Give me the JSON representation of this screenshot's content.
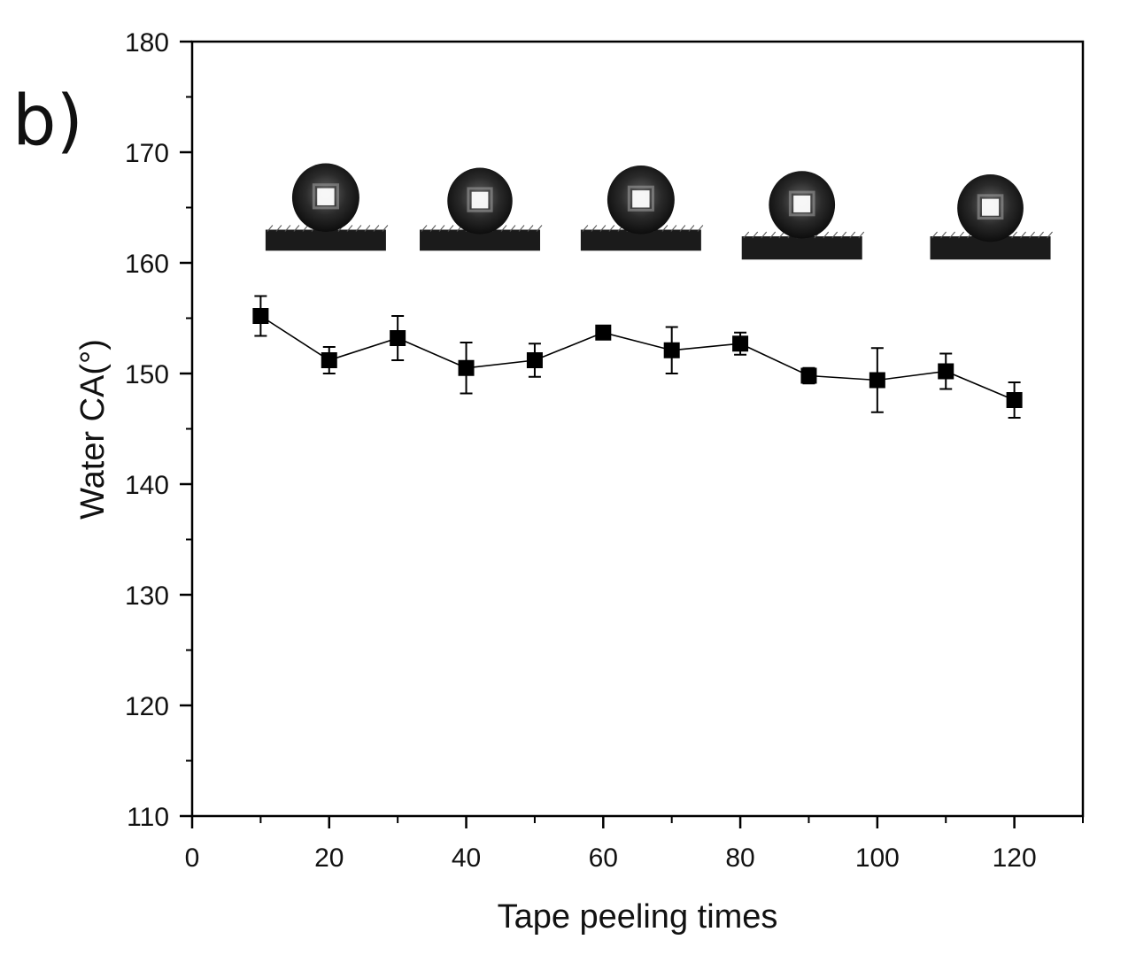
{
  "panel_label": "b)",
  "chart_data": {
    "type": "scatter",
    "title": "",
    "xlabel": "Tape peeling times",
    "ylabel": "Water CA(°)",
    "xlim": [
      0,
      130
    ],
    "ylim": [
      110,
      180
    ],
    "x_ticks": [
      0,
      20,
      40,
      60,
      80,
      100,
      120
    ],
    "y_ticks": [
      110,
      120,
      130,
      140,
      150,
      160,
      170,
      180
    ],
    "x_minor_step": 10,
    "y_minor_step": 5,
    "grid": false,
    "marker": "square",
    "line": "solid",
    "color": "#000000",
    "series": [
      {
        "x": [
          10,
          20,
          30,
          40,
          50,
          60,
          70,
          80,
          90,
          100,
          110,
          120
        ],
        "y": [
          155.2,
          151.2,
          153.2,
          150.5,
          151.2,
          153.7,
          152.1,
          152.7,
          149.8,
          149.4,
          150.2,
          147.6
        ],
        "error": [
          1.8,
          1.2,
          2.0,
          2.3,
          1.5,
          0.5,
          2.1,
          1.0,
          0.7,
          2.9,
          1.6,
          1.6
        ]
      }
    ],
    "insets": [
      {
        "name": "droplet-image",
        "x_center": 19.5,
        "drop_top": 169.0,
        "drop_bottom": 162.8,
        "base_top": 163.0,
        "base_bottom": 161.1
      },
      {
        "name": "droplet-image",
        "x_center": 42.0,
        "drop_top": 168.6,
        "drop_bottom": 162.6,
        "base_top": 163.0,
        "base_bottom": 161.1
      },
      {
        "name": "droplet-image",
        "x_center": 65.5,
        "drop_top": 168.8,
        "drop_bottom": 162.6,
        "base_top": 163.0,
        "base_bottom": 161.1
      },
      {
        "name": "droplet-image",
        "x_center": 89.0,
        "drop_top": 168.3,
        "drop_bottom": 162.2,
        "base_top": 162.4,
        "base_bottom": 160.3
      },
      {
        "name": "droplet-image",
        "x_center": 116.5,
        "drop_top": 168.0,
        "drop_bottom": 161.9,
        "base_top": 162.4,
        "base_bottom": 160.3
      }
    ]
  }
}
